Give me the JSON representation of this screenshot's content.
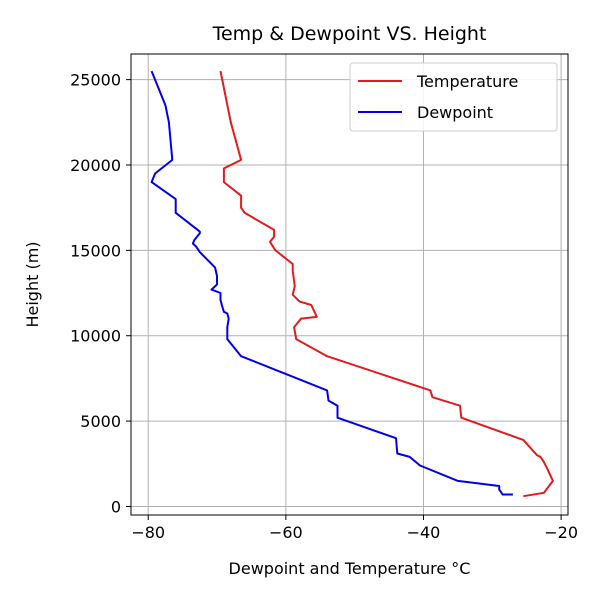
{
  "chart_data": {
    "type": "line",
    "title": "Temp & Dewpoint VS. Height",
    "xlabel": "Dewpoint and Temperature °C",
    "ylabel": "Height (m)",
    "xlim": [
      -82.5,
      -19.0
    ],
    "ylim": [
      -500,
      26500
    ],
    "xticks": [
      -80,
      -60,
      -40,
      -20
    ],
    "yticks": [
      0,
      5000,
      10000,
      15000,
      20000,
      25000
    ],
    "grid": true,
    "legend": "top-right",
    "series": [
      {
        "name": "Temperature",
        "color": "#e41a1c",
        "points": [
          [
            -25.5,
            600
          ],
          [
            -22.5,
            800
          ],
          [
            -21.2,
            1500
          ],
          [
            -22.0,
            2200
          ],
          [
            -22.5,
            2600
          ],
          [
            -23.0,
            2900
          ],
          [
            -23.5,
            3000
          ],
          [
            -25.5,
            3900
          ],
          [
            -34.5,
            5200
          ],
          [
            -34.7,
            5900
          ],
          [
            -38.7,
            6400
          ],
          [
            -39.0,
            6800
          ],
          [
            -54.0,
            8800
          ],
          [
            -58.5,
            9800
          ],
          [
            -58.8,
            10500
          ],
          [
            -57.8,
            11000
          ],
          [
            -55.5,
            11100
          ],
          [
            -56.3,
            11800
          ],
          [
            -58.0,
            12000
          ],
          [
            -59.0,
            12400
          ],
          [
            -58.7,
            12900
          ],
          [
            -59.0,
            13800
          ],
          [
            -59.0,
            14200
          ],
          [
            -61.5,
            15000
          ],
          [
            -62.0,
            15300
          ],
          [
            -62.3,
            15500
          ],
          [
            -61.7,
            15800
          ],
          [
            -61.7,
            16200
          ],
          [
            -66.0,
            17200
          ],
          [
            -66.5,
            17500
          ],
          [
            -66.5,
            18200
          ],
          [
            -69.0,
            19000
          ],
          [
            -69.0,
            19800
          ],
          [
            -66.5,
            20300
          ],
          [
            -68.0,
            22500
          ],
          [
            -69.5,
            25500
          ]
        ]
      },
      {
        "name": "Dewpoint",
        "color": "#0000ee",
        "points": [
          [
            -27.0,
            700
          ],
          [
            -28.5,
            700
          ],
          [
            -29.0,
            1000
          ],
          [
            -29.0,
            1200
          ],
          [
            -35.0,
            1500
          ],
          [
            -40.5,
            2400
          ],
          [
            -42.0,
            2900
          ],
          [
            -43.8,
            3100
          ],
          [
            -44.0,
            4000
          ],
          [
            -52.5,
            5200
          ],
          [
            -52.5,
            5900
          ],
          [
            -53.8,
            6200
          ],
          [
            -54.0,
            6800
          ],
          [
            -66.5,
            8800
          ],
          [
            -68.5,
            9800
          ],
          [
            -68.5,
            10500
          ],
          [
            -68.3,
            11000
          ],
          [
            -68.5,
            11300
          ],
          [
            -69.0,
            11400
          ],
          [
            -69.3,
            11800
          ],
          [
            -69.5,
            12100
          ],
          [
            -69.5,
            12500
          ],
          [
            -70.8,
            12700
          ],
          [
            -70.0,
            13000
          ],
          [
            -70.0,
            13500
          ],
          [
            -70.3,
            14000
          ],
          [
            -72.5,
            14900
          ],
          [
            -73.0,
            15200
          ],
          [
            -73.5,
            15400
          ],
          [
            -73.3,
            15600
          ],
          [
            -72.5,
            16000
          ],
          [
            -72.5,
            16100
          ],
          [
            -76.0,
            17200
          ],
          [
            -76.0,
            18000
          ],
          [
            -79.5,
            19000
          ],
          [
            -79.0,
            19500
          ],
          [
            -76.5,
            20300
          ],
          [
            -77.0,
            22500
          ],
          [
            -77.5,
            23500
          ],
          [
            -79.5,
            25500
          ]
        ]
      }
    ]
  }
}
